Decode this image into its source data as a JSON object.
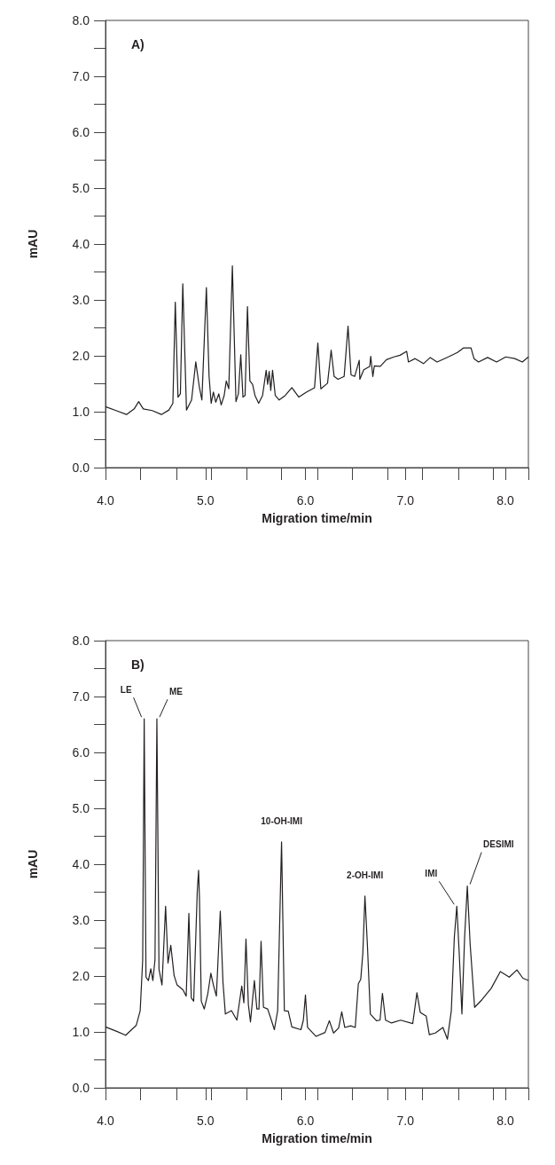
{
  "chart_data": [
    {
      "type": "line",
      "xlabel": "Migration time/min",
      "ylabel": "mAU",
      "color": "#231f20",
      "xlim": [
        4,
        8.23
      ],
      "ylim": [
        0,
        8
      ],
      "xticks": [
        {
          "value": 4,
          "label": "4.0"
        },
        {
          "value": 4.35,
          "label": null
        },
        {
          "value": 4.71,
          "label": null
        },
        {
          "value": 5,
          "label": "5.0"
        },
        {
          "value": 5.06,
          "label": null
        },
        {
          "value": 5.41,
          "label": null
        },
        {
          "value": 5.76,
          "label": null
        },
        {
          "value": 6,
          "label": "6.0"
        },
        {
          "value": 6.12,
          "label": null
        },
        {
          "value": 6.47,
          "label": null
        },
        {
          "value": 6.82,
          "label": null
        },
        {
          "value": 7,
          "label": "7.0"
        },
        {
          "value": 7.17,
          "label": null
        },
        {
          "value": 7.53,
          "label": null
        },
        {
          "value": 7.88,
          "label": null
        },
        {
          "value": 8,
          "label": "8.0"
        },
        {
          "value": 8.23,
          "label": null
        }
      ],
      "yticks": [
        {
          "value": 0,
          "label": "0.0"
        },
        {
          "value": 0.5,
          "label": null
        },
        {
          "value": 1,
          "label": "1.0"
        },
        {
          "value": 1.5,
          "label": null
        },
        {
          "value": 2,
          "label": "2.0"
        },
        {
          "value": 2.5,
          "label": null
        },
        {
          "value": 3,
          "label": "3.0"
        },
        {
          "value": 3.5,
          "label": null
        },
        {
          "value": 4,
          "label": "4.0"
        },
        {
          "value": 4.5,
          "label": null
        },
        {
          "value": 5,
          "label": "5.0"
        },
        {
          "value": 5.5,
          "label": null
        },
        {
          "value": 6,
          "label": "6.0"
        },
        {
          "value": 6.5,
          "label": null
        },
        {
          "value": 7,
          "label": "7.0"
        },
        {
          "value": 7.5,
          "label": null
        },
        {
          "value": 8,
          "label": "8.0"
        }
      ],
      "annotations": [
        "A)"
      ],
      "x": [
        4.0,
        4.106,
        4.21,
        4.287,
        4.332,
        4.378,
        4.468,
        4.559,
        4.634,
        4.674,
        4.698,
        4.725,
        4.749,
        4.773,
        4.81,
        4.861,
        4.903,
        4.937,
        4.964,
        5.009,
        5.036,
        5.057,
        5.079,
        5.103,
        5.133,
        5.157,
        5.187,
        5.208,
        5.233,
        5.269,
        5.305,
        5.329,
        5.353,
        5.375,
        5.396,
        5.42,
        5.444,
        5.471,
        5.495,
        5.532,
        5.571,
        5.607,
        5.622,
        5.637,
        5.653,
        5.671,
        5.698,
        5.737,
        5.798,
        5.864,
        5.934,
        6.009,
        6.091,
        6.124,
        6.154,
        6.221,
        6.257,
        6.287,
        6.326,
        6.387,
        6.426,
        6.456,
        6.492,
        6.538,
        6.544,
        6.583,
        6.643,
        6.653,
        6.674,
        6.689,
        6.749,
        6.81,
        6.885,
        6.946,
        7.012,
        7.03,
        7.097,
        7.181,
        7.248,
        7.317,
        7.429,
        7.52,
        7.58,
        7.656,
        7.686,
        7.731,
        7.822,
        7.912,
        8.003,
        8.094,
        8.169,
        8.23
      ],
      "values": [
        1.09,
        1.02,
        0.95,
        1.05,
        1.18,
        1.05,
        1.02,
        0.95,
        1.03,
        1.15,
        2.96,
        1.26,
        1.32,
        3.29,
        1.03,
        1.21,
        1.89,
        1.46,
        1.21,
        3.22,
        1.63,
        1.15,
        1.35,
        1.17,
        1.32,
        1.12,
        1.29,
        1.55,
        1.41,
        3.61,
        1.18,
        1.32,
        2.02,
        1.26,
        1.29,
        2.88,
        1.55,
        1.49,
        1.29,
        1.15,
        1.29,
        1.74,
        1.49,
        1.72,
        1.38,
        1.74,
        1.29,
        1.21,
        1.29,
        1.43,
        1.26,
        1.35,
        1.43,
        2.23,
        1.41,
        1.51,
        2.1,
        1.63,
        1.58,
        1.63,
        2.53,
        1.66,
        1.63,
        1.92,
        1.58,
        1.75,
        1.81,
        1.99,
        1.63,
        1.82,
        1.81,
        1.93,
        1.98,
        2.01,
        2.08,
        1.89,
        1.95,
        1.86,
        1.97,
        1.89,
        1.98,
        2.06,
        2.14,
        2.14,
        1.95,
        1.89,
        1.97,
        1.89,
        1.98,
        1.95,
        1.89,
        1.98
      ]
    },
    {
      "type": "line",
      "xlabel": "Migration time/min",
      "ylabel": "mAU",
      "color": "#231f20",
      "xlim": [
        4,
        8.23
      ],
      "ylim": [
        0,
        8
      ],
      "xticks": [
        {
          "value": 4,
          "label": "4.0"
        },
        {
          "value": 4.35,
          "label": null
        },
        {
          "value": 4.71,
          "label": null
        },
        {
          "value": 5,
          "label": "5.0"
        },
        {
          "value": 5.06,
          "label": null
        },
        {
          "value": 5.41,
          "label": null
        },
        {
          "value": 5.76,
          "label": null
        },
        {
          "value": 6,
          "label": "6.0"
        },
        {
          "value": 6.12,
          "label": null
        },
        {
          "value": 6.47,
          "label": null
        },
        {
          "value": 6.82,
          "label": null
        },
        {
          "value": 7,
          "label": "7.0"
        },
        {
          "value": 7.17,
          "label": null
        },
        {
          "value": 7.53,
          "label": null
        },
        {
          "value": 7.88,
          "label": null
        },
        {
          "value": 8,
          "label": "8.0"
        },
        {
          "value": 8.23,
          "label": null
        }
      ],
      "yticks": [
        {
          "value": 0,
          "label": "0.0"
        },
        {
          "value": 0.5,
          "label": null
        },
        {
          "value": 1,
          "label": "1.0"
        },
        {
          "value": 1.5,
          "label": null
        },
        {
          "value": 2,
          "label": "2.0"
        },
        {
          "value": 2.5,
          "label": null
        },
        {
          "value": 3,
          "label": "3.0"
        },
        {
          "value": 3.5,
          "label": null
        },
        {
          "value": 4,
          "label": "4.0"
        },
        {
          "value": 4.5,
          "label": null
        },
        {
          "value": 5,
          "label": "5.0"
        },
        {
          "value": 5.5,
          "label": null
        },
        {
          "value": 6,
          "label": "6.0"
        },
        {
          "value": 6.5,
          "label": null
        },
        {
          "value": 7,
          "label": "7.0"
        },
        {
          "value": 7.5,
          "label": null
        },
        {
          "value": 8,
          "label": "8.0"
        }
      ],
      "annotations": [
        "B)",
        {
          "text": "LE",
          "x": 4.387,
          "y": 6.6
        },
        {
          "text": "ME",
          "x": 4.514,
          "y": 6.6
        },
        {
          "text": "10-OH-IMI",
          "x": 5.761,
          "y": 4.4
        },
        {
          "text": "2-OH-IMI",
          "x": 6.595,
          "y": 3.43
        },
        {
          "text": "IMI",
          "x": 7.514,
          "y": 3.25
        },
        {
          "text": "DESIMI",
          "x": 7.619,
          "y": 3.61
        }
      ],
      "x": [
        4.0,
        4.112,
        4.202,
        4.308,
        4.347,
        4.372,
        4.387,
        4.405,
        4.429,
        4.453,
        4.474,
        4.495,
        4.514,
        4.535,
        4.565,
        4.601,
        4.625,
        4.653,
        4.686,
        4.716,
        4.776,
        4.807,
        4.834,
        4.858,
        4.882,
        4.918,
        4.931,
        4.94,
        4.958,
        4.988,
        5.024,
        5.054,
        5.079,
        5.109,
        5.148,
        5.175,
        5.199,
        5.26,
        5.314,
        5.363,
        5.384,
        5.405,
        5.429,
        5.45,
        5.489,
        5.514,
        5.535,
        5.556,
        5.58,
        5.622,
        5.659,
        5.689,
        5.722,
        5.761,
        5.789,
        5.828,
        5.864,
        5.955,
        5.979,
        6.0,
        6.021,
        6.106,
        6.196,
        6.239,
        6.281,
        6.332,
        6.363,
        6.393,
        6.453,
        6.498,
        6.529,
        6.553,
        6.574,
        6.595,
        6.619,
        6.649,
        6.71,
        6.746,
        6.77,
        6.801,
        6.861,
        6.952,
        7.073,
        7.115,
        7.148,
        7.208,
        7.239,
        7.299,
        7.375,
        7.42,
        7.459,
        7.489,
        7.514,
        7.538,
        7.565,
        7.592,
        7.619,
        7.647,
        7.692,
        7.767,
        7.858,
        7.949,
        8.039,
        8.115,
        8.175,
        8.23
      ],
      "values": [
        1.09,
        1.01,
        0.94,
        1.12,
        1.38,
        2.29,
        6.6,
        1.98,
        1.92,
        2.13,
        1.92,
        2.29,
        6.6,
        2.12,
        1.84,
        3.25,
        2.23,
        2.55,
        2.01,
        1.84,
        1.75,
        1.64,
        3.12,
        1.61,
        1.55,
        3.52,
        3.89,
        3.38,
        1.55,
        1.41,
        1.69,
        2.05,
        1.84,
        1.64,
        3.16,
        1.89,
        1.32,
        1.38,
        1.21,
        1.82,
        1.52,
        2.66,
        1.49,
        1.18,
        1.92,
        1.41,
        1.41,
        2.62,
        1.44,
        1.41,
        1.21,
        1.04,
        1.38,
        4.4,
        1.38,
        1.37,
        1.09,
        1.04,
        1.21,
        1.66,
        1.08,
        0.92,
        0.99,
        1.2,
        0.98,
        1.07,
        1.36,
        1.08,
        1.11,
        1.08,
        1.86,
        1.94,
        2.41,
        3.43,
        2.58,
        1.32,
        1.2,
        1.21,
        1.69,
        1.21,
        1.16,
        1.21,
        1.15,
        1.7,
        1.35,
        1.28,
        0.95,
        0.98,
        1.08,
        0.87,
        1.38,
        2.69,
        3.25,
        2.41,
        1.32,
        2.69,
        3.61,
        2.58,
        1.44,
        1.58,
        1.78,
        2.08,
        1.98,
        2.11,
        1.96,
        1.92
      ]
    }
  ]
}
